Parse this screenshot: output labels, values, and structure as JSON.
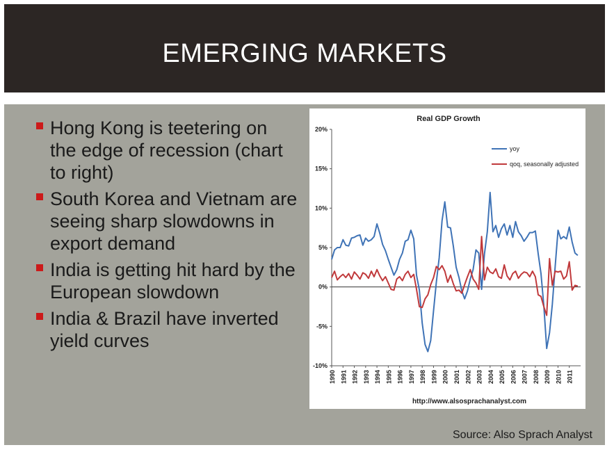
{
  "slide": {
    "title": "EMERGING MARKETS",
    "bullets": [
      "Hong Kong is teetering on the edge of recession (chart to right)",
      "South Korea and Vietnam are seeing sharp slowdowns in export demand",
      "India is getting hit hard by the European slowdown",
      "India & Brazil have inverted yield curves"
    ],
    "source": "Source: Also Sprach Analyst",
    "bullet_color": "#cc1a1a"
  },
  "chart_data": {
    "type": "line",
    "title": "Real GDP Growth",
    "footer_url": "http://www.alsosprachanalyst.com",
    "xlabel": "",
    "ylabel": "",
    "ylim": [
      -10,
      20
    ],
    "xlim": [
      1990,
      2012
    ],
    "yticks": [
      "20%",
      "15%",
      "10%",
      "5%",
      "0%",
      "-5%",
      "-10%"
    ],
    "ytick_values": [
      20,
      15,
      10,
      5,
      0,
      -5,
      -10
    ],
    "xticks": [
      "1990",
      "1991",
      "1992",
      "1993",
      "1994",
      "1995",
      "1996",
      "1997",
      "1998",
      "1999",
      "2000",
      "2001",
      "2002",
      "2003",
      "2004",
      "2005",
      "2006",
      "2007",
      "2008",
      "2009",
      "2010",
      "2011"
    ],
    "grid": false,
    "legend_position": "top-right",
    "series": [
      {
        "name": "yoy",
        "color": "#3f73b6",
        "x": [
          1990,
          1990.25,
          1990.5,
          1990.75,
          1991,
          1991.25,
          1991.5,
          1991.75,
          1992,
          1992.25,
          1992.5,
          1992.75,
          1993,
          1993.25,
          1993.5,
          1993.75,
          1994,
          1994.25,
          1994.5,
          1994.75,
          1995,
          1995.25,
          1995.5,
          1995.75,
          1996,
          1996.25,
          1996.5,
          1996.75,
          1997,
          1997.25,
          1997.5,
          1997.75,
          1998,
          1998.25,
          1998.5,
          1998.75,
          1999,
          1999.25,
          1999.5,
          1999.75,
          2000,
          2000.25,
          2000.5,
          2000.75,
          2001,
          2001.25,
          2001.5,
          2001.75,
          2002,
          2002.25,
          2002.5,
          2002.75,
          2003,
          2003.25,
          2003.5,
          2003.75,
          2004,
          2004.25,
          2004.5,
          2004.75,
          2005,
          2005.25,
          2005.5,
          2005.75,
          2006,
          2006.25,
          2006.5,
          2006.75,
          2007,
          2007.25,
          2007.5,
          2007.75,
          2008,
          2008.25,
          2008.5,
          2008.75,
          2009,
          2009.25,
          2009.5,
          2009.75,
          2010,
          2010.25,
          2010.5,
          2010.75,
          2011,
          2011.25,
          2011.5,
          2011.75
        ],
        "values": [
          3.5,
          4.7,
          5.0,
          5.0,
          6.0,
          5.3,
          5.2,
          6.2,
          6.3,
          6.5,
          6.6,
          5.3,
          6.2,
          5.8,
          6.0,
          6.4,
          8.0,
          6.8,
          5.4,
          4.6,
          3.5,
          2.5,
          1.5,
          2.2,
          3.5,
          4.3,
          5.8,
          6.0,
          7.2,
          6.1,
          1.5,
          -0.4,
          -4.6,
          -7.3,
          -8.2,
          -6.8,
          -3.0,
          0.6,
          3.7,
          8.4,
          10.8,
          7.6,
          7.5,
          5.2,
          2.5,
          1.2,
          -0.5,
          -1.5,
          -0.5,
          1.0,
          2.2,
          4.7,
          4.3,
          -0.3,
          4.2,
          7.0,
          12.0,
          7.0,
          7.8,
          6.3,
          7.4,
          8.0,
          6.6,
          7.8,
          6.3,
          8.3,
          7.0,
          6.5,
          5.8,
          6.3,
          6.9,
          6.9,
          7.1,
          4.2,
          1.7,
          -2.4,
          -7.8,
          -5.8,
          -2.2,
          2.6,
          7.2,
          6.1,
          6.4,
          6.1,
          7.6,
          5.7,
          4.3,
          4.0
        ]
      },
      {
        "name": "qoq, seasonally adjusted",
        "color": "#c0393b",
        "x": [
          1990,
          1990.25,
          1990.5,
          1990.75,
          1991,
          1991.25,
          1991.5,
          1991.75,
          1992,
          1992.25,
          1992.5,
          1992.75,
          1993,
          1993.25,
          1993.5,
          1993.75,
          1994,
          1994.25,
          1994.5,
          1994.75,
          1995,
          1995.25,
          1995.5,
          1995.75,
          1996,
          1996.25,
          1996.5,
          1996.75,
          1997,
          1997.25,
          1997.5,
          1997.75,
          1998,
          1998.25,
          1998.5,
          1998.75,
          1999,
          1999.25,
          1999.5,
          1999.75,
          2000,
          2000.25,
          2000.5,
          2000.75,
          2001,
          2001.25,
          2001.5,
          2001.75,
          2002,
          2002.25,
          2002.5,
          2002.75,
          2003,
          2003.25,
          2003.5,
          2003.75,
          2004,
          2004.25,
          2004.5,
          2004.75,
          2005,
          2005.25,
          2005.5,
          2005.75,
          2006,
          2006.25,
          2006.5,
          2006.75,
          2007,
          2007.25,
          2007.5,
          2007.75,
          2008,
          2008.25,
          2008.5,
          2008.75,
          2009,
          2009.25,
          2009.5,
          2009.75,
          2010,
          2010.25,
          2010.5,
          2010.75,
          2011,
          2011.25,
          2011.5,
          2011.75
        ],
        "values": [
          1.2,
          2.0,
          0.9,
          1.3,
          1.6,
          1.2,
          1.7,
          1.0,
          1.9,
          1.5,
          1.0,
          1.8,
          1.6,
          1.1,
          2.0,
          1.3,
          2.2,
          1.4,
          0.8,
          1.3,
          0.5,
          -0.3,
          -0.4,
          1.0,
          1.3,
          0.8,
          1.6,
          2.0,
          1.2,
          1.6,
          -0.3,
          -2.5,
          -2.6,
          -1.5,
          -1.0,
          0.3,
          1.2,
          2.6,
          2.2,
          2.7,
          2.0,
          0.6,
          1.5,
          0.4,
          -0.5,
          -0.4,
          -0.8,
          0.3,
          1.3,
          2.2,
          1.0,
          0.5,
          -0.3,
          6.4,
          0.9,
          2.5,
          1.9,
          1.7,
          2.3,
          1.3,
          1.1,
          2.8,
          1.4,
          0.9,
          1.7,
          2.0,
          1.1,
          1.6,
          1.9,
          1.8,
          1.3,
          2.0,
          1.3,
          -1.0,
          -1.2,
          -2.5,
          -3.6,
          3.6,
          0.2,
          2.0,
          1.9,
          2.0,
          1.0,
          1.4,
          3.2,
          -0.4,
          0.2,
          0.1
        ]
      }
    ]
  }
}
